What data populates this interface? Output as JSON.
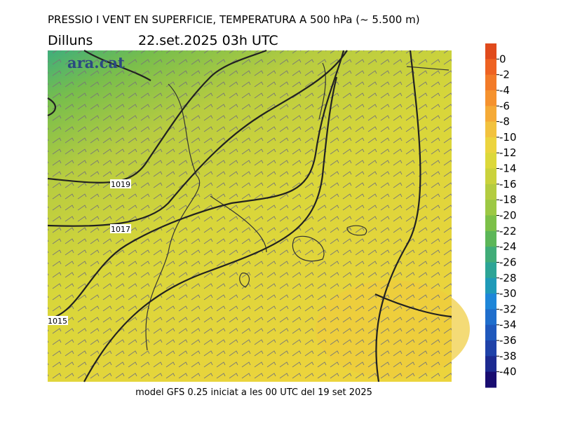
{
  "header": {
    "title": "PRESSIO I VENT EN SUPERFICIE, TEMPERATURA A 500 hPa (~ 5.500 m)",
    "day": "Dilluns",
    "date": "22.set.2025 03h UTC"
  },
  "logo": "ara.cat",
  "isobars": [
    {
      "label": "1019"
    },
    {
      "label": "1017"
    },
    {
      "label": "1015"
    }
  ],
  "footer": "model GFS 0.25 iniciat a les 00 UTC del 19 set 2025",
  "colorbar": {
    "lim": [
      2,
      -42
    ],
    "ticks": [
      0,
      -2,
      -4,
      -6,
      -8,
      -10,
      -12,
      -14,
      -16,
      -18,
      -20,
      -22,
      -24,
      -26,
      -28,
      -30,
      -32,
      -34,
      -36,
      -38,
      -40
    ],
    "colors": [
      "#e04a1c",
      "#ee6222",
      "#f27a28",
      "#f5922e",
      "#f5aa36",
      "#f2c23e",
      "#ecd43e",
      "#dcd83a",
      "#cad23c",
      "#b4cc40",
      "#9cc844",
      "#7cc048",
      "#5cb658",
      "#40ac78",
      "#2ca496",
      "#1f9ab8",
      "#1e86d8",
      "#1f6ecc",
      "#1f58bc",
      "#1f42a8",
      "#1c2a90",
      "#180c70"
    ]
  }
}
